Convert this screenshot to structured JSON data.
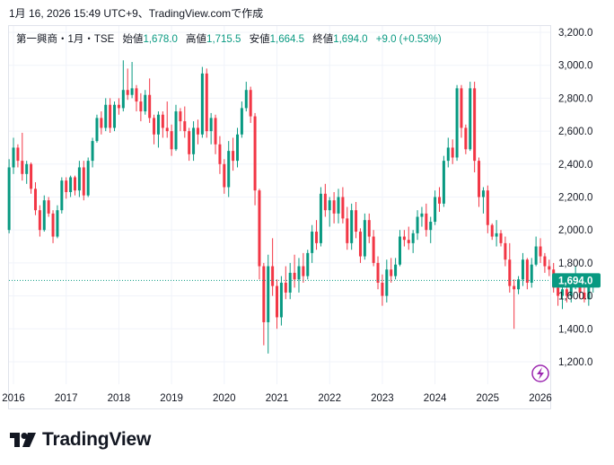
{
  "header": {
    "caption": "1月 16, 2026 15:49 UTC+9、TradingView.comで作成"
  },
  "legend": {
    "symbol": "第一興商・1月・TSE",
    "open_label": "始値",
    "open_value": "1,678.0",
    "high_label": "高値",
    "high_value": "1,715.5",
    "low_label": "安値",
    "low_value": "1,664.5",
    "close_label": "終値",
    "close_value": "1,694.0",
    "change": "+9.0 (+0.53%)"
  },
  "price_badge": "1,694.0",
  "brand": {
    "name": "TradingView"
  },
  "colors": {
    "up": "#089981",
    "down": "#f23645",
    "badge": "#089981",
    "text": "#131722",
    "grid": "#f0f3fa",
    "lightning": "#9c27b0"
  },
  "icons": {
    "alert": "lightning-icon",
    "logo": "tradingview-logo-icon"
  },
  "chart_data": {
    "type": "candlestick",
    "title": "第一興商・1月・TSE",
    "interval": "monthly",
    "y_axis": {
      "ticks": [
        1200,
        1400,
        1600,
        1800,
        2000,
        2200,
        2400,
        2600,
        2800,
        3000,
        3200
      ],
      "tick_labels": [
        "1,200.0",
        "1,400.0",
        "1,600.0",
        "1,800.0",
        "2,000.0",
        "2,200.0",
        "2,400.0",
        "2,600.0",
        "2,800.0",
        "3,000.0",
        "3,200.0"
      ],
      "ylim": [
        1060,
        3250
      ]
    },
    "x_axis": {
      "labels": [
        "2016",
        "2017",
        "2018",
        "2019",
        "2020",
        "2021",
        "2022",
        "2023",
        "2024",
        "2025",
        "2026"
      ],
      "start": 2016.0,
      "end": 2026.2
    },
    "last_price": 1694.0,
    "candles_ohlc": [
      [
        2000,
        2430,
        1980,
        2380
      ],
      [
        2380,
        2560,
        2340,
        2500
      ],
      [
        2500,
        2520,
        2380,
        2420
      ],
      [
        2420,
        2590,
        2300,
        2340
      ],
      [
        2340,
        2420,
        2280,
        2400
      ],
      [
        2400,
        2410,
        2220,
        2250
      ],
      [
        2250,
        2290,
        2090,
        2120
      ],
      [
        2120,
        2150,
        1960,
        2000
      ],
      [
        2000,
        2210,
        1990,
        2180
      ],
      [
        2180,
        2200,
        2080,
        2100
      ],
      [
        2100,
        2120,
        1920,
        1960
      ],
      [
        1960,
        2150,
        1950,
        2120
      ],
      [
        2120,
        2320,
        2100,
        2300
      ],
      [
        2300,
        2320,
        2190,
        2230
      ],
      [
        2230,
        2330,
        2200,
        2320
      ],
      [
        2320,
        2330,
        2210,
        2240
      ],
      [
        2240,
        2420,
        2200,
        2380
      ],
      [
        2380,
        2420,
        2180,
        2210
      ],
      [
        2210,
        2440,
        2200,
        2420
      ],
      [
        2420,
        2560,
        2380,
        2540
      ],
      [
        2540,
        2700,
        2530,
        2680
      ],
      [
        2680,
        2720,
        2580,
        2620
      ],
      [
        2620,
        2800,
        2600,
        2760
      ],
      [
        2760,
        2800,
        2590,
        2620
      ],
      [
        2620,
        2780,
        2600,
        2760
      ],
      [
        2760,
        2800,
        2700,
        2740
      ],
      [
        2740,
        3030,
        2720,
        2850
      ],
      [
        2850,
        2980,
        2790,
        2820
      ],
      [
        2820,
        3020,
        2800,
        2860
      ],
      [
        2860,
        2880,
        2720,
        2780
      ],
      [
        2780,
        2830,
        2660,
        2720
      ],
      [
        2720,
        2850,
        2700,
        2820
      ],
      [
        2820,
        2920,
        2650,
        2680
      ],
      [
        2680,
        2700,
        2520,
        2580
      ],
      [
        2580,
        2720,
        2500,
        2700
      ],
      [
        2700,
        2720,
        2560,
        2620
      ],
      [
        2620,
        2780,
        2560,
        2600
      ],
      [
        2600,
        2640,
        2450,
        2490
      ],
      [
        2490,
        2760,
        2480,
        2720
      ],
      [
        2720,
        2740,
        2600,
        2660
      ],
      [
        2660,
        2750,
        2560,
        2600
      ],
      [
        2600,
        2620,
        2420,
        2460
      ],
      [
        2460,
        2660,
        2420,
        2620
      ],
      [
        2620,
        2670,
        2520,
        2580
      ],
      [
        2580,
        2990,
        2560,
        2950
      ],
      [
        2950,
        2980,
        2560,
        2600
      ],
      [
        2600,
        2710,
        2520,
        2680
      ],
      [
        2680,
        2700,
        2460,
        2520
      ],
      [
        2520,
        2570,
        2340,
        2400
      ],
      [
        2400,
        2430,
        2220,
        2260
      ],
      [
        2260,
        2540,
        2200,
        2480
      ],
      [
        2480,
        2560,
        2360,
        2420
      ],
      [
        2420,
        2620,
        2380,
        2580
      ],
      [
        2580,
        2780,
        2560,
        2740
      ],
      [
        2740,
        2900,
        2720,
        2850
      ],
      [
        2850,
        2870,
        2650,
        2690
      ],
      [
        2690,
        2710,
        2150,
        2240
      ],
      [
        2240,
        2250,
        1700,
        1780
      ],
      [
        1780,
        1800,
        1300,
        1440
      ],
      [
        1440,
        1850,
        1250,
        1780
      ],
      [
        1780,
        1950,
        1600,
        1660
      ],
      [
        1660,
        1700,
        1400,
        1470
      ],
      [
        1470,
        1720,
        1420,
        1680
      ],
      [
        1680,
        1780,
        1580,
        1620
      ],
      [
        1620,
        1800,
        1580,
        1740
      ],
      [
        1740,
        1850,
        1650,
        1700
      ],
      [
        1700,
        1830,
        1620,
        1780
      ],
      [
        1780,
        1860,
        1680,
        1720
      ],
      [
        1720,
        1880,
        1700,
        1860
      ],
      [
        1860,
        2030,
        1800,
        1990
      ],
      [
        1990,
        2060,
        1880,
        1920
      ],
      [
        1920,
        2260,
        1900,
        2220
      ],
      [
        2220,
        2280,
        2080,
        2120
      ],
      [
        2120,
        2200,
        2020,
        2180
      ],
      [
        2180,
        2230,
        2040,
        2100
      ],
      [
        2100,
        2250,
        2040,
        2200
      ],
      [
        2200,
        2260,
        2040,
        2070
      ],
      [
        2070,
        2140,
        1880,
        1920
      ],
      [
        1920,
        2160,
        1880,
        2120
      ],
      [
        2120,
        2170,
        1950,
        1990
      ],
      [
        1990,
        2010,
        1800,
        1840
      ],
      [
        1840,
        2100,
        1820,
        2060
      ],
      [
        2060,
        2100,
        1920,
        1960
      ],
      [
        1960,
        2000,
        1780,
        1800
      ],
      [
        1800,
        1840,
        1640,
        1680
      ],
      [
        1680,
        1730,
        1540,
        1600
      ],
      [
        1600,
        1820,
        1560,
        1760
      ],
      [
        1760,
        1830,
        1680,
        1720
      ],
      [
        1720,
        1830,
        1700,
        1790
      ],
      [
        1790,
        2000,
        1780,
        1960
      ],
      [
        1960,
        2000,
        1900,
        1940
      ],
      [
        1940,
        2020,
        1880,
        1920
      ],
      [
        1920,
        2000,
        1860,
        1980
      ],
      [
        1980,
        2120,
        1940,
        2080
      ],
      [
        2080,
        2140,
        2020,
        2100
      ],
      [
        2100,
        2160,
        1960,
        2000
      ],
      [
        2000,
        2080,
        1920,
        2050
      ],
      [
        2050,
        2240,
        2030,
        2200
      ],
      [
        2200,
        2260,
        2110,
        2160
      ],
      [
        2160,
        2450,
        2140,
        2420
      ],
      [
        2420,
        2560,
        2380,
        2500
      ],
      [
        2500,
        2550,
        2400,
        2440
      ],
      [
        2440,
        2880,
        2420,
        2860
      ],
      [
        2860,
        2880,
        2560,
        2620
      ],
      [
        2620,
        2640,
        2460,
        2490
      ],
      [
        2490,
        2900,
        2480,
        2860
      ],
      [
        2860,
        2900,
        2350,
        2420
      ],
      [
        2420,
        2440,
        2140,
        2200
      ],
      [
        2200,
        2260,
        2100,
        2240
      ],
      [
        2240,
        2270,
        1980,
        2030
      ],
      [
        2030,
        2040,
        1940,
        1960
      ],
      [
        1960,
        2060,
        1900,
        1980
      ],
      [
        1980,
        2000,
        1900,
        1920
      ],
      [
        1920,
        1960,
        1780,
        1820
      ],
      [
        1820,
        1920,
        1620,
        1660
      ],
      [
        1660,
        1700,
        1400,
        1640
      ],
      [
        1640,
        1720,
        1610,
        1700
      ],
      [
        1700,
        1860,
        1660,
        1820
      ],
      [
        1820,
        1830,
        1640,
        1680
      ],
      [
        1680,
        1830,
        1650,
        1790
      ],
      [
        1790,
        1960,
        1780,
        1900
      ],
      [
        1900,
        1950,
        1800,
        1840
      ],
      [
        1840,
        1860,
        1740,
        1780
      ],
      [
        1780,
        1820,
        1720,
        1760
      ],
      [
        1760,
        1800,
        1620,
        1650
      ],
      [
        1650,
        1690,
        1540,
        1600
      ],
      [
        1600,
        1680,
        1520,
        1640
      ],
      [
        1640,
        1720,
        1560,
        1600
      ],
      [
        1600,
        1690,
        1560,
        1660
      ],
      [
        1660,
        1780,
        1640,
        1700
      ],
      [
        1700,
        1710,
        1580,
        1620
      ],
      [
        1620,
        1700,
        1560,
        1580
      ],
      [
        1580,
        1690,
        1540,
        1660
      ],
      [
        1660,
        1710,
        1620,
        1680
      ],
      [
        1680,
        1715.5,
        1664.5,
        1694
      ]
    ]
  }
}
